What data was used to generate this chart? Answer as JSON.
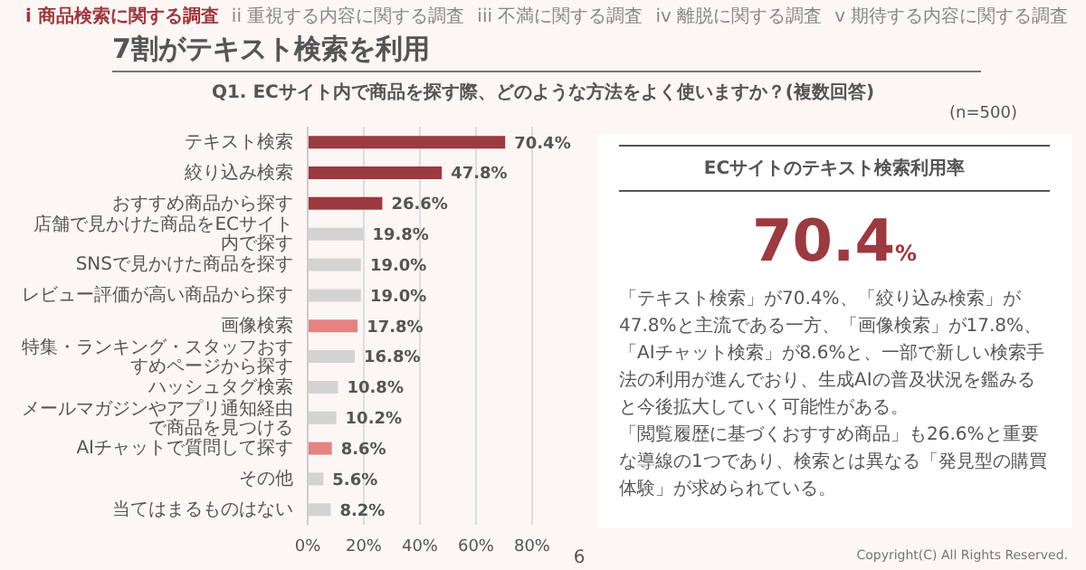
{
  "chart_data": [
    {
      "type": "bar",
      "orientation": "horizontal",
      "title": "Q1. ECサイト内で商品を探す際、どのような方法をよく使いますか？(複数回答)",
      "annotations": [
        "i 商品検索に関する調査",
        "ii 重視する内容に関する調査",
        "iii 不満に関する調査",
        "iv 離脱に関する調査",
        "v 期待する内容に関する調査",
        "7割がテキスト検索を利用",
        "(n=500)",
        "6",
        "Copyright(C) All Rights Reserved."
      ],
      "categories": [
        "テキスト検索",
        "絞り込み検索",
        "おすすめ商品から探す",
        "店舗で見かけた商品をECサイト内で探す",
        "SNSで見かけた商品を探す",
        "レビュー評価が高い商品から探す",
        "画像検索",
        "特集・ランキング・スタッフおすすめページから探す",
        "ハッシュタグ検索",
        "メールマガジンやアプリ通知経由で商品を見つける",
        "AIチャットで質問して探す",
        "その他",
        "当てはまるものはない"
      ],
      "values": [
        70.4,
        47.8,
        26.6,
        19.8,
        19.0,
        19.0,
        17.8,
        16.8,
        10.8,
        10.2,
        8.6,
        5.6,
        8.2
      ],
      "value_labels": [
        "70.4%",
        "47.8%",
        "26.6%",
        "19.8%",
        "19.0%",
        "19.0%",
        "17.8%",
        "16.8%",
        "10.8%",
        "10.2%",
        "8.6%",
        "5.6%",
        "8.2%"
      ],
      "colors": [
        "#9b3a40",
        "#9b3a40",
        "#9b3a40",
        "#d3d3d3",
        "#d3d3d3",
        "#d3d3d3",
        "#e58383",
        "#d3d3d3",
        "#d3d3d3",
        "#d3d3d3",
        "#e58383",
        "#d3d3d3",
        "#d3d3d3"
      ],
      "xlim": [
        0,
        80
      ],
      "xticks": [
        {
          "value": 0,
          "label": "0%"
        },
        {
          "value": 20,
          "label": "20%"
        },
        {
          "value": 40,
          "label": "40%"
        },
        {
          "value": 60,
          "label": "60%"
        },
        {
          "value": 80,
          "label": "80%"
        }
      ],
      "grid": "x"
    },
    {
      "type": "other",
      "title": "ECサイトのテキスト検索利用率",
      "annotations": [
        "70.4%",
        "「テキスト検索」が70.4%、「絞り込み検索」が47.8%と主流である一方、「画像検索」が17.8%、「AIチャット検索」が8.6%と、一部で新しい検索手法の利用が進んでおり、生成AIの普及状況を鑑みると今後拡大していく可能性がある。",
        "「閲覧履歴に基づくおすすめ商品」も26.6%と重要な導線の1つであり、検索とは異なる「発見型の購買体験」が求められている。"
      ]
    }
  ]
}
